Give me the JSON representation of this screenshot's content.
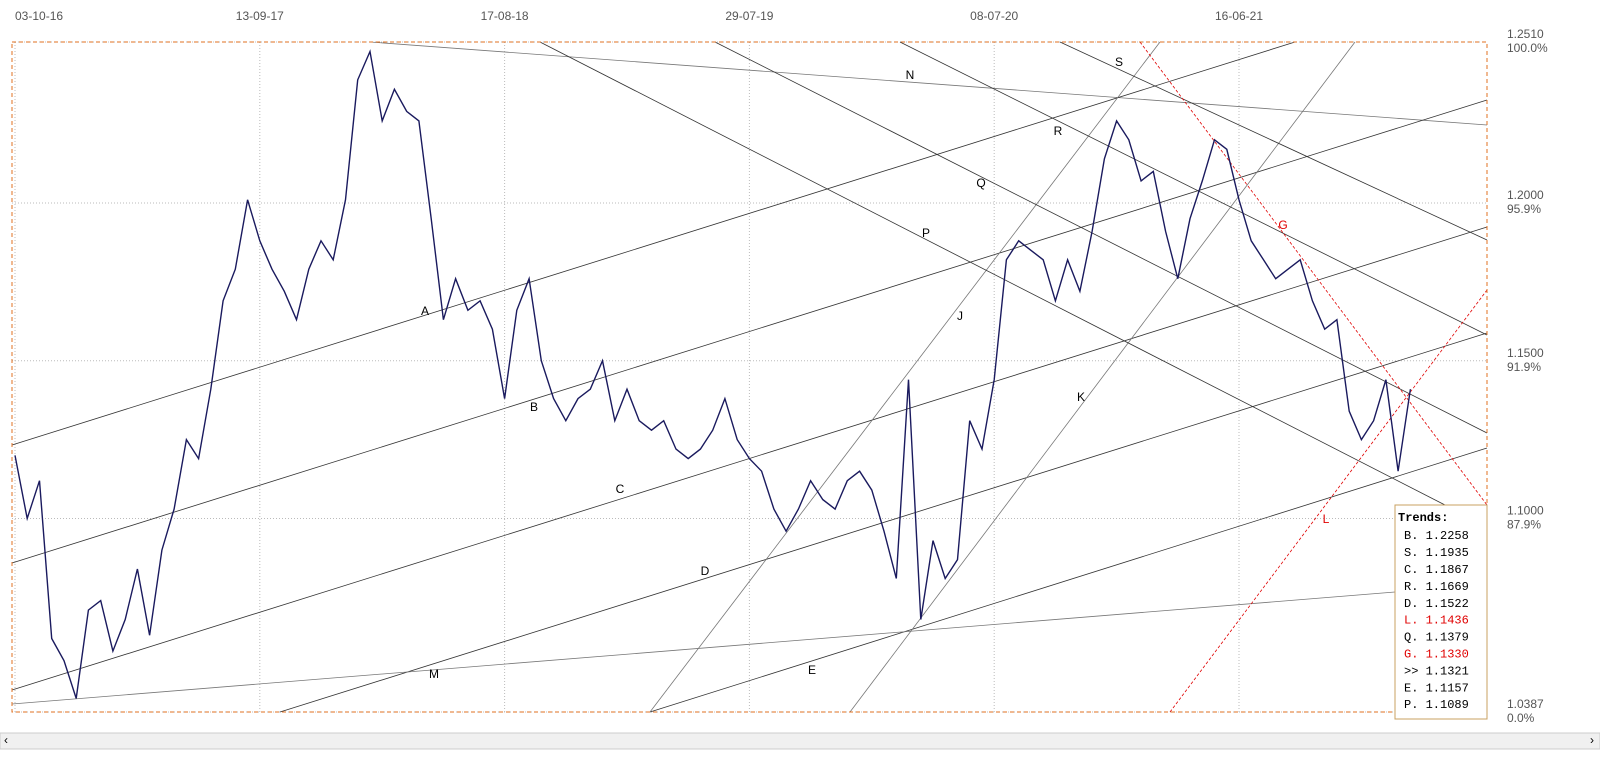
{
  "chart_data": {
    "type": "line",
    "categories": [
      "03-10-16",
      null,
      null,
      null,
      null,
      null,
      null,
      null,
      null,
      null,
      null,
      null,
      null,
      null,
      null,
      null,
      null,
      null,
      null,
      null,
      "13-09-17",
      null,
      null,
      null,
      null,
      null,
      null,
      null,
      null,
      null,
      null,
      null,
      null,
      null,
      null,
      null,
      null,
      null,
      null,
      null,
      "17-08-18",
      null,
      null,
      null,
      null,
      null,
      null,
      null,
      null,
      null,
      null,
      null,
      null,
      null,
      null,
      null,
      null,
      null,
      null,
      null,
      "29-07-19",
      null,
      null,
      null,
      null,
      null,
      null,
      null,
      null,
      null,
      null,
      null,
      null,
      null,
      null,
      null,
      null,
      null,
      null,
      null,
      "08-07-20",
      null,
      null,
      null,
      null,
      null,
      null,
      null,
      null,
      null,
      null,
      null,
      null,
      null,
      null,
      null,
      null,
      null,
      null,
      null,
      "16-06-21",
      null,
      null,
      null,
      null,
      null,
      null,
      null,
      null,
      null,
      null,
      null,
      null,
      null,
      null
    ],
    "series": [
      {
        "color": "#1a1a5e",
        "values": [
          1.12,
          1.1,
          1.112,
          1.062,
          1.055,
          1.043,
          1.071,
          1.074,
          1.058,
          1.068,
          1.084,
          1.063,
          1.09,
          1.103,
          1.125,
          1.119,
          1.141,
          1.169,
          1.179,
          1.201,
          1.188,
          1.179,
          1.172,
          1.163,
          1.179,
          1.188,
          1.182,
          1.201,
          1.239,
          1.248,
          1.226,
          1.236,
          1.229,
          1.226,
          1.195,
          1.163,
          1.176,
          1.166,
          1.169,
          1.16,
          1.138,
          1.166,
          1.176,
          1.15,
          1.138,
          1.131,
          1.138,
          1.141,
          1.15,
          1.131,
          1.141,
          1.131,
          1.128,
          1.131,
          1.122,
          1.119,
          1.122,
          1.128,
          1.138,
          1.125,
          1.119,
          1.115,
          1.103,
          1.096,
          1.103,
          1.112,
          1.106,
          1.103,
          1.112,
          1.115,
          1.109,
          1.096,
          1.081,
          1.144,
          1.068,
          1.093,
          1.081,
          1.087,
          1.131,
          1.122,
          1.144,
          1.182,
          1.188,
          1.185,
          1.182,
          1.169,
          1.182,
          1.172,
          1.191,
          1.214,
          1.226,
          1.22,
          1.207,
          1.21,
          1.191,
          1.176,
          1.195,
          1.207,
          1.22,
          1.217,
          1.201,
          1.188,
          1.182,
          1.176,
          1.179,
          1.182,
          1.169,
          1.16,
          1.163,
          1.134,
          1.125,
          1.131,
          1.144,
          1.115,
          1.141
        ]
      }
    ],
    "ylim": [
      1.0387,
      1.251
    ],
    "yticks": [
      {
        "value": 1.251,
        "label": "1.2510",
        "pct": "100.0%"
      },
      {
        "value": 1.2,
        "label": "1.2000",
        "pct": "95.9%"
      },
      {
        "value": 1.15,
        "label": "1.1500",
        "pct": "91.9%"
      },
      {
        "value": 1.1,
        "label": "1.1000",
        "pct": "87.9%"
      },
      {
        "value": 1.0387,
        "label": "1.0387",
        "pct": "0.0%"
      }
    ],
    "grid": true,
    "annotations": [
      {
        "text": "N",
        "color": "#000"
      },
      {
        "text": "S",
        "color": "#000"
      },
      {
        "text": "R",
        "color": "#000"
      },
      {
        "text": "Q",
        "color": "#000"
      },
      {
        "text": "P",
        "color": "#000"
      },
      {
        "text": "A",
        "color": "#000"
      },
      {
        "text": "B",
        "color": "#000"
      },
      {
        "text": "C",
        "color": "#000"
      },
      {
        "text": "D",
        "color": "#000"
      },
      {
        "text": "E",
        "color": "#000"
      },
      {
        "text": "M",
        "color": "#000"
      },
      {
        "text": "J",
        "color": "#000"
      },
      {
        "text": "K",
        "color": "#000"
      },
      {
        "text": "G",
        "color": "#e00000"
      },
      {
        "text": "L",
        "color": "#e00000"
      }
    ],
    "trends": {
      "title": "Trends:",
      "items": [
        {
          "text": "B. 1.2258",
          "color": "#000"
        },
        {
          "text": "S. 1.1935",
          "color": "#000"
        },
        {
          "text": "C. 1.1867",
          "color": "#000"
        },
        {
          "text": "R. 1.1669",
          "color": "#000"
        },
        {
          "text": "D. 1.1522",
          "color": "#000"
        },
        {
          "text": "L. 1.1436",
          "color": "#e00000"
        },
        {
          "text": "Q. 1.1379",
          "color": "#000"
        },
        {
          "text": "G. 1.1330",
          "color": "#e00000"
        },
        {
          "text": ">> 1.1321",
          "color": "#000"
        },
        {
          "text": "E. 1.1157",
          "color": "#000"
        },
        {
          "text": "P. 1.1089",
          "color": "#000"
        }
      ]
    }
  }
}
